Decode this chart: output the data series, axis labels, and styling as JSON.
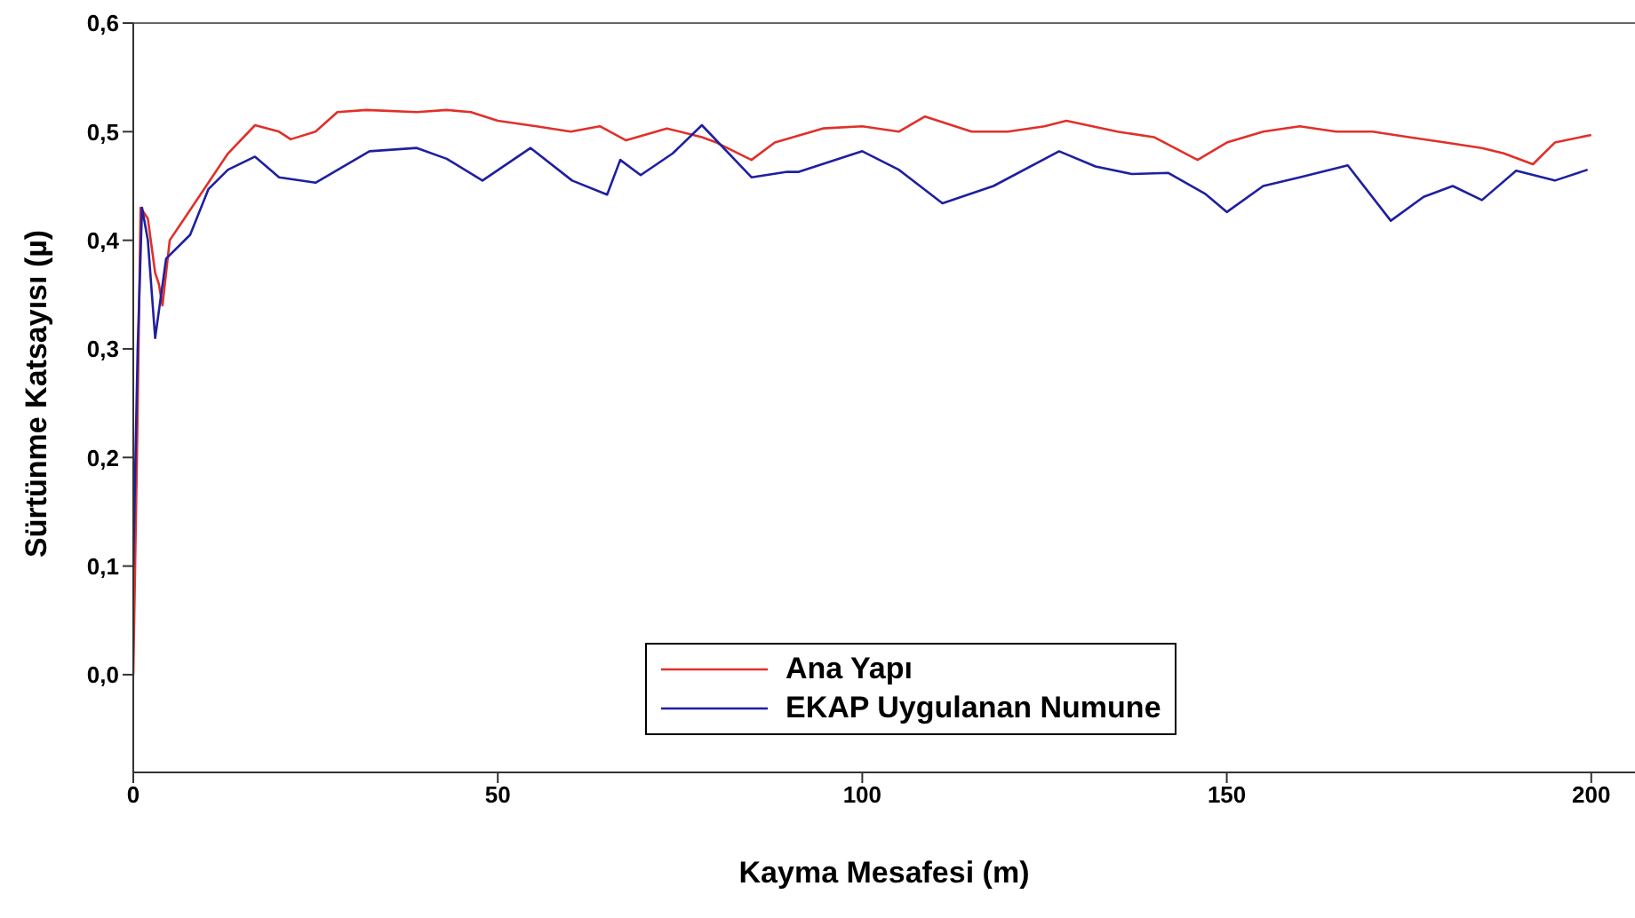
{
  "chart_data": {
    "type": "line",
    "xlabel": "Kayma Mesafesi (m)",
    "ylabel": "Sürtünme Katsayısı (µ)",
    "xlim": [
      0,
      206
    ],
    "xticks": [
      0,
      50,
      100,
      150,
      200
    ],
    "ylim": [
      -0.09,
      0.6
    ],
    "yticks": [
      {
        "value": 0,
        "label": "0,0"
      },
      {
        "value": 0.1,
        "label": "0,1"
      },
      {
        "value": 0.2,
        "label": "0,2"
      },
      {
        "value": 0.3,
        "label": "0,3"
      },
      {
        "value": 0.4,
        "label": "0,4"
      },
      {
        "value": 0.5,
        "label": "0,5"
      },
      {
        "value": 0.6,
        "label": "0,6"
      }
    ],
    "grid": false,
    "legend": "bottom",
    "marker": "none",
    "line_style": "solid",
    "series": [
      {
        "name": "Ana Yapı",
        "color": "#e0302a",
        "x": [
          0,
          0.5,
          1,
          2,
          3,
          3.5,
          4,
          5,
          7,
          10,
          13,
          16.7,
          20,
          21.6,
          25,
          28,
          32,
          38.9,
          43,
          46.3,
          50,
          55.3,
          60,
          64,
          67.6,
          73.2,
          78,
          80,
          84.8,
          88,
          94.6,
          100,
          105,
          108.6,
          115,
          120,
          125,
          128,
          135,
          140,
          146,
          150,
          155,
          160,
          165,
          170,
          175,
          180,
          185,
          188,
          192,
          195,
          200
        ],
        "values": [
          0.0,
          0.2,
          0.43,
          0.42,
          0.37,
          0.36,
          0.34,
          0.4,
          0.42,
          0.45,
          0.48,
          0.506,
          0.5,
          0.493,
          0.5,
          0.518,
          0.52,
          0.518,
          0.52,
          0.518,
          0.51,
          0.505,
          0.5,
          0.505,
          0.492,
          0.503,
          0.495,
          0.49,
          0.474,
          0.49,
          0.503,
          0.505,
          0.5,
          0.514,
          0.5,
          0.5,
          0.505,
          0.51,
          0.5,
          0.495,
          0.474,
          0.49,
          0.5,
          0.505,
          0.5,
          0.5,
          0.495,
          0.49,
          0.485,
          0.48,
          0.47,
          0.49,
          0.497
        ]
      },
      {
        "name": "EKAP Uygulanan Numune",
        "color": "#1f1fa0",
        "x": [
          0,
          0.3,
          0.6,
          1.2,
          2,
          3,
          4.5,
          7.8,
          10.3,
          13,
          16.7,
          20,
          25,
          32.4,
          38.9,
          43,
          47.9,
          54.5,
          60.2,
          65,
          66.8,
          69.6,
          74,
          78,
          84.8,
          89.7,
          91.3,
          100,
          105,
          111,
          118,
          127,
          132,
          137,
          142,
          147,
          150,
          155,
          160,
          166.6,
          172.5,
          177,
          181,
          185,
          189.7,
          195,
          199.5
        ],
        "values": [
          0.1,
          0.2,
          0.3,
          0.43,
          0.4,
          0.31,
          0.383,
          0.405,
          0.447,
          0.465,
          0.477,
          0.458,
          0.453,
          0.482,
          0.485,
          0.475,
          0.455,
          0.485,
          0.455,
          0.442,
          0.474,
          0.46,
          0.48,
          0.506,
          0.458,
          0.463,
          0.463,
          0.482,
          0.465,
          0.434,
          0.45,
          0.482,
          0.468,
          0.461,
          0.462,
          0.443,
          0.426,
          0.45,
          0.458,
          0.469,
          0.418,
          0.44,
          0.45,
          0.437,
          0.464,
          0.455,
          0.465
        ]
      }
    ]
  }
}
